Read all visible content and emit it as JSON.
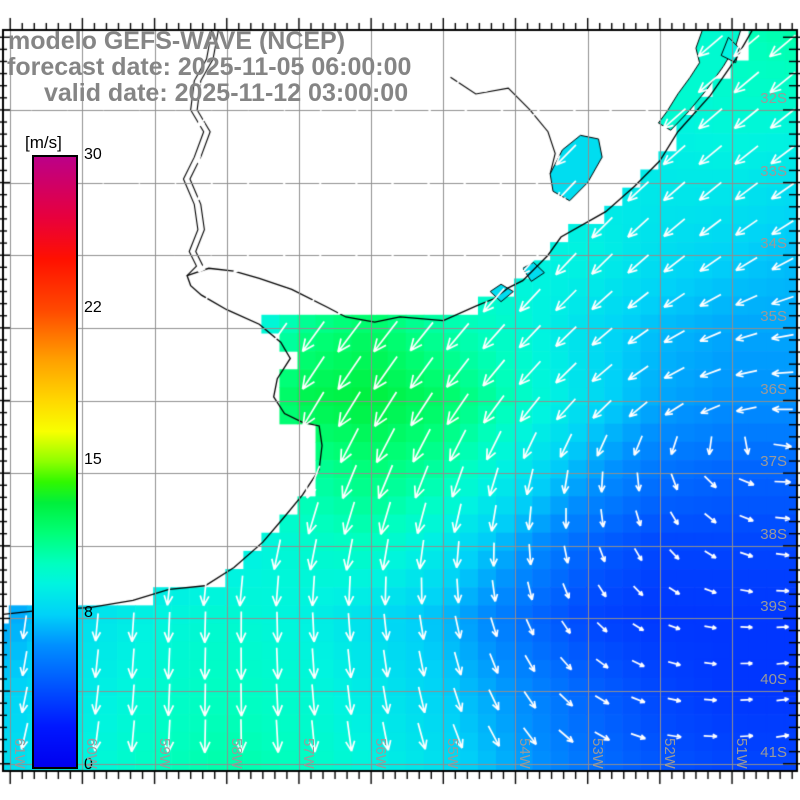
{
  "title": {
    "line1": "modelo GEFS-WAVE (NCEP)",
    "line2": "forecast date: 2025-11-05 06:00:00",
    "line3": "valid date: 2025-11-12 03:00:00"
  },
  "colorbar": {
    "unit": "[m/s]",
    "min": 0,
    "max": 30,
    "ticks": [
      {
        "label": "30",
        "value": 30
      },
      {
        "label": "22",
        "value": 22.5
      },
      {
        "label": "15",
        "value": 15
      },
      {
        "label": "8",
        "value": 7.5
      },
      {
        "label": "0",
        "value": 0
      }
    ],
    "stops": [
      [
        0,
        "#0000ef"
      ],
      [
        2,
        "#0018ff"
      ],
      [
        4,
        "#0054ff"
      ],
      [
        6,
        "#0090ff"
      ],
      [
        7.5,
        "#00d2f8"
      ],
      [
        9,
        "#00f4e0"
      ],
      [
        10,
        "#00ffc0"
      ],
      [
        11.5,
        "#00ff78"
      ],
      [
        13,
        "#00f03c"
      ],
      [
        14,
        "#30f800"
      ],
      [
        15,
        "#8cff00"
      ],
      [
        16.5,
        "#f8ff00"
      ],
      [
        18,
        "#ffd800"
      ],
      [
        20,
        "#ffa000"
      ],
      [
        22.5,
        "#ff4800"
      ],
      [
        25,
        "#ff1000"
      ],
      [
        27,
        "#e8003c"
      ],
      [
        30,
        "#bc0088"
      ]
    ]
  },
  "map": {
    "extent": {
      "lon_w_max": 61.1,
      "lon_w_min": 50.1,
      "lat_s_min": 30.9,
      "lat_s_max": 41.1
    },
    "grid_step_deg": 1,
    "minor_tick_deg": 0.166667,
    "lon_labels": [
      {
        "text": "61W",
        "lon": 61
      },
      {
        "text": "60W",
        "lon": 60
      },
      {
        "text": "59W",
        "lon": 59
      },
      {
        "text": "58W",
        "lon": 58
      },
      {
        "text": "57W",
        "lon": 57
      },
      {
        "text": "56W",
        "lon": 56
      },
      {
        "text": "55W",
        "lon": 55
      },
      {
        "text": "54W",
        "lon": 54
      },
      {
        "text": "53W",
        "lon": 53
      },
      {
        "text": "52W",
        "lon": 52
      },
      {
        "text": "51W",
        "lon": 51
      }
    ],
    "lat_labels": [
      {
        "text": "32S",
        "lat": 32
      },
      {
        "text": "33S",
        "lat": 33
      },
      {
        "text": "34S",
        "lat": 34
      },
      {
        "text": "35S",
        "lat": 35
      },
      {
        "text": "36S",
        "lat": 36
      },
      {
        "text": "37S",
        "lat": 37
      },
      {
        "text": "38S",
        "lat": 38
      },
      {
        "text": "39S",
        "lat": 39
      },
      {
        "text": "40S",
        "lat": 40
      },
      {
        "text": "41S",
        "lat": 41
      }
    ],
    "colors": {
      "grid_line": "#8f8f8f",
      "coast": "#000000",
      "land": "#ffffff",
      "label": "#9a9a9a",
      "arrow": "#ffffff",
      "frame": "#000000"
    }
  },
  "geography": {
    "coastline": [
      [
        50.7,
        30.87
      ],
      [
        50.95,
        31.3
      ],
      [
        51.3,
        31.8
      ],
      [
        51.75,
        32.3
      ],
      [
        52.0,
        32.7
      ],
      [
        52.35,
        33.05
      ],
      [
        52.75,
        33.4
      ],
      [
        53.37,
        33.75
      ],
      [
        53.55,
        34.0
      ],
      [
        53.9,
        34.35
      ],
      [
        54.1,
        34.45
      ],
      [
        54.3,
        34.6
      ],
      [
        54.55,
        34.7
      ],
      [
        55.0,
        34.9
      ],
      [
        55.6,
        34.85
      ],
      [
        55.95,
        34.92
      ],
      [
        56.35,
        34.85
      ],
      [
        56.6,
        34.72
      ],
      [
        57.1,
        34.47
      ],
      [
        57.55,
        34.32
      ],
      [
        57.9,
        34.22
      ],
      [
        58.25,
        34.18
      ],
      [
        58.55,
        34.28
      ],
      [
        58.5,
        34.42
      ],
      [
        58.35,
        34.55
      ],
      [
        58.0,
        34.75
      ],
      [
        57.55,
        34.95
      ],
      [
        57.25,
        35.2
      ],
      [
        57.12,
        35.42
      ],
      [
        57.3,
        35.7
      ],
      [
        57.35,
        35.95
      ],
      [
        57.2,
        36.18
      ],
      [
        56.95,
        36.3
      ],
      [
        56.72,
        36.35
      ],
      [
        56.68,
        36.62
      ],
      [
        56.72,
        36.95
      ],
      [
        56.95,
        37.3
      ],
      [
        57.2,
        37.6
      ],
      [
        57.5,
        37.95
      ],
      [
        57.9,
        38.3
      ],
      [
        58.3,
        38.55
      ],
      [
        58.8,
        38.6
      ],
      [
        59.3,
        38.75
      ],
      [
        59.9,
        38.85
      ],
      [
        60.5,
        38.88
      ],
      [
        61.15,
        38.95
      ]
    ],
    "rivers": [
      [
        [
          58.2,
          30.87
        ],
        [
          58.28,
          31.3
        ],
        [
          58.45,
          31.6
        ],
        [
          58.5,
          32.0
        ],
        [
          58.32,
          32.3
        ],
        [
          58.45,
          32.65
        ],
        [
          58.6,
          32.95
        ],
        [
          58.45,
          33.3
        ],
        [
          58.4,
          33.65
        ],
        [
          58.52,
          33.95
        ],
        [
          58.42,
          34.15
        ],
        [
          58.55,
          34.28
        ]
      ],
      [
        [
          58.11,
          30.87
        ],
        [
          58.19,
          31.3
        ],
        [
          58.36,
          31.6
        ],
        [
          58.41,
          32.0
        ],
        [
          58.23,
          32.3
        ],
        [
          58.36,
          32.65
        ],
        [
          58.51,
          32.95
        ],
        [
          58.36,
          33.3
        ],
        [
          58.31,
          33.65
        ],
        [
          58.43,
          33.95
        ],
        [
          58.33,
          34.15
        ]
      ],
      [
        [
          54.9,
          31.55
        ],
        [
          54.55,
          31.78
        ],
        [
          54.1,
          31.7
        ],
        [
          53.8,
          32.0
        ],
        [
          53.55,
          32.3
        ],
        [
          53.45,
          32.6
        ],
        [
          53.52,
          32.88
        ]
      ]
    ],
    "lagoons": [
      {
        "name": "lagoa-dos-patos",
        "speed": 9.5,
        "poly": [
          [
            51.4,
            30.87
          ],
          [
            51.5,
            31.15
          ],
          [
            51.45,
            31.35
          ],
          [
            51.58,
            31.55
          ],
          [
            51.75,
            31.78
          ],
          [
            51.9,
            32.02
          ],
          [
            52.02,
            32.18
          ],
          [
            51.85,
            32.28
          ],
          [
            51.6,
            32.02
          ],
          [
            51.35,
            31.72
          ],
          [
            51.12,
            31.4
          ],
          [
            50.95,
            31.12
          ],
          [
            50.87,
            30.87
          ]
        ]
      },
      {
        "name": "lagoa-dos-patos-south",
        "speed": 9,
        "poly": [
          [
            51.05,
            31.0
          ],
          [
            50.9,
            31.15
          ],
          [
            50.95,
            31.35
          ],
          [
            51.15,
            31.25
          ]
        ]
      },
      {
        "name": "lagoa-mirim",
        "speed": 8,
        "poly": [
          [
            53.52,
            32.88
          ],
          [
            53.35,
            32.55
          ],
          [
            53.1,
            32.35
          ],
          [
            52.85,
            32.4
          ],
          [
            52.8,
            32.65
          ],
          [
            53.0,
            33.0
          ],
          [
            53.25,
            33.25
          ],
          [
            53.48,
            33.12
          ]
        ]
      },
      {
        "name": "laguna-de-rocha",
        "speed": 8,
        "poly": [
          [
            54.35,
            34.5
          ],
          [
            54.2,
            34.4
          ],
          [
            54.03,
            34.5
          ],
          [
            54.2,
            34.64
          ]
        ]
      },
      {
        "name": "laguna-de-castillos",
        "speed": 8,
        "poly": [
          [
            53.9,
            34.18
          ],
          [
            53.75,
            34.1
          ],
          [
            53.6,
            34.24
          ],
          [
            53.78,
            34.36
          ]
        ]
      }
    ]
  },
  "chart_data": {
    "type": "heatmap",
    "title": "GEFS-WAVE wind speed and direction forecast",
    "units": "m/s",
    "legend_position": "left",
    "value_range": [
      0,
      30
    ],
    "wind_field": {
      "lons_w": [
        61,
        60,
        59,
        58,
        57,
        56,
        55,
        54,
        53,
        52,
        51,
        50
      ],
      "lats_s": [
        31,
        32,
        33,
        34,
        35,
        36,
        37,
        38,
        39,
        40,
        41
      ],
      "cell_deg": 0.25,
      "arrow_grid_deg": 0.5,
      "speed_ms": [
        [
          6.0,
          6.0,
          6.0,
          6.0,
          6.5,
          7.0,
          7.5,
          8.0,
          8.5,
          9.0,
          10.0,
          10.5
        ],
        [
          6.0,
          6.0,
          6.0,
          6.0,
          6.5,
          7.0,
          7.5,
          8.0,
          8.5,
          9.0,
          9.5,
          9.5
        ],
        [
          6.0,
          6.0,
          6.0,
          6.5,
          7.0,
          7.5,
          8.0,
          8.5,
          8.5,
          8.5,
          8.5,
          8.0
        ],
        [
          5.0,
          5.0,
          5.5,
          6.0,
          8.0,
          9.5,
          9.5,
          9.0,
          9.0,
          8.0,
          7.5,
          7.0
        ],
        [
          5.0,
          5.5,
          6.0,
          7.0,
          11.0,
          12.0,
          10.5,
          9.5,
          8.0,
          7.0,
          6.5,
          6.5
        ],
        [
          6.0,
          6.5,
          7.0,
          9.0,
          12.5,
          13.0,
          12.0,
          10.0,
          8.0,
          6.5,
          6.0,
          6.0
        ],
        [
          6.5,
          7.0,
          7.5,
          9.0,
          10.5,
          11.5,
          10.5,
          8.5,
          6.5,
          5.0,
          4.5,
          4.5
        ],
        [
          6.5,
          7.5,
          8.0,
          8.5,
          9.5,
          10.0,
          8.5,
          6.5,
          4.5,
          3.5,
          3.5,
          3.5
        ],
        [
          6.5,
          8.0,
          9.0,
          9.5,
          9.0,
          8.0,
          7.0,
          5.0,
          3.5,
          3.0,
          3.0,
          3.0
        ],
        [
          7.5,
          8.5,
          9.5,
          10.0,
          9.5,
          8.5,
          7.5,
          6.0,
          4.5,
          3.5,
          3.0,
          3.0
        ],
        [
          8.0,
          9.0,
          10.0,
          10.5,
          10.0,
          9.0,
          8.0,
          6.5,
          5.0,
          4.0,
          3.5,
          3.5
        ]
      ],
      "direction_toward_deg": [
        [
          225,
          225,
          225,
          225,
          225,
          225,
          226,
          227,
          228,
          229,
          230,
          230
        ],
        [
          225,
          225,
          225,
          225,
          225,
          225,
          225,
          226,
          226,
          228,
          230,
          232
        ],
        [
          222,
          222,
          222,
          222,
          222,
          222,
          222,
          222,
          224,
          228,
          232,
          236
        ],
        [
          220,
          220,
          220,
          220,
          220,
          220,
          220,
          221,
          224,
          230,
          236,
          242
        ],
        [
          215,
          215,
          215,
          215,
          216,
          218,
          220,
          223,
          228,
          238,
          250,
          262
        ],
        [
          210,
          210,
          210,
          211,
          212,
          213,
          215,
          220,
          228,
          240,
          258,
          276
        ],
        [
          200,
          200,
          200,
          201,
          202,
          204,
          202,
          196,
          188,
          170,
          120,
          80
        ],
        [
          192,
          193,
          194,
          194,
          193,
          192,
          188,
          180,
          165,
          145,
          115,
          92
        ],
        [
          188,
          186,
          183,
          181,
          178,
          175,
          170,
          160,
          140,
          115,
          95,
          85
        ],
        [
          192,
          187,
          183,
          180,
          176,
          172,
          165,
          150,
          125,
          105,
          90,
          80
        ],
        [
          195,
          189,
          184,
          180,
          175,
          170,
          160,
          145,
          120,
          100,
          88,
          78
        ]
      ]
    }
  }
}
